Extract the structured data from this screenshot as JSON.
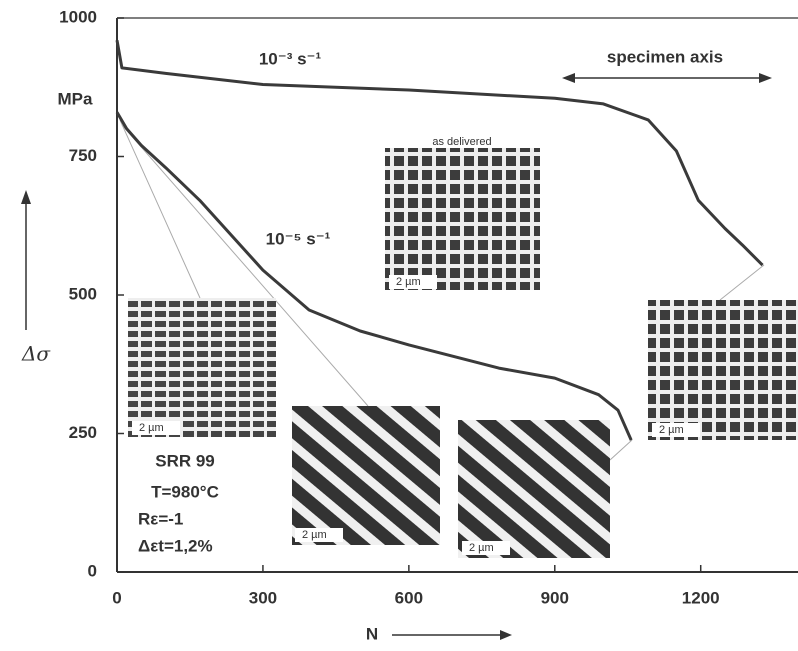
{
  "chart_data": {
    "type": "line",
    "xlabel": "N",
    "ylabel": "Δσ",
    "y_unit": "MPa",
    "xlim": [
      0,
      1400
    ],
    "ylim": [
      0,
      1000
    ],
    "xticks": [
      0,
      300,
      600,
      900,
      1200
    ],
    "yticks": [
      0,
      250,
      500,
      750,
      1000
    ],
    "series": [
      {
        "name": "10⁻³ s⁻¹",
        "color": "#3a3a3a",
        "x": [
          0,
          10,
          100,
          300,
          600,
          900,
          1000,
          1092,
          1150,
          1195,
          1250,
          1286,
          1327
        ],
        "values": [
          960,
          910,
          900,
          880,
          870,
          855,
          845,
          816,
          760,
          671,
          620,
          590,
          554
        ]
      },
      {
        "name": "10⁻⁵ s⁻¹",
        "color": "#3a3a3a",
        "x": [
          0,
          20,
          50,
          100,
          170,
          300,
          395,
          500,
          600,
          785,
          900,
          990,
          1030,
          1057
        ],
        "values": [
          830,
          800,
          770,
          730,
          671,
          545,
          473,
          435,
          410,
          368,
          350,
          320,
          292,
          238
        ]
      }
    ],
    "annotations": [
      "specimen axis",
      "as delivered",
      "SRR 99",
      "T=980°C",
      "Rε=-1",
      "Δεt=1,2%"
    ],
    "scale_bars": [
      "2 µm",
      "2 µm",
      "2 µm",
      "2 µm",
      "2 µm"
    ]
  }
}
